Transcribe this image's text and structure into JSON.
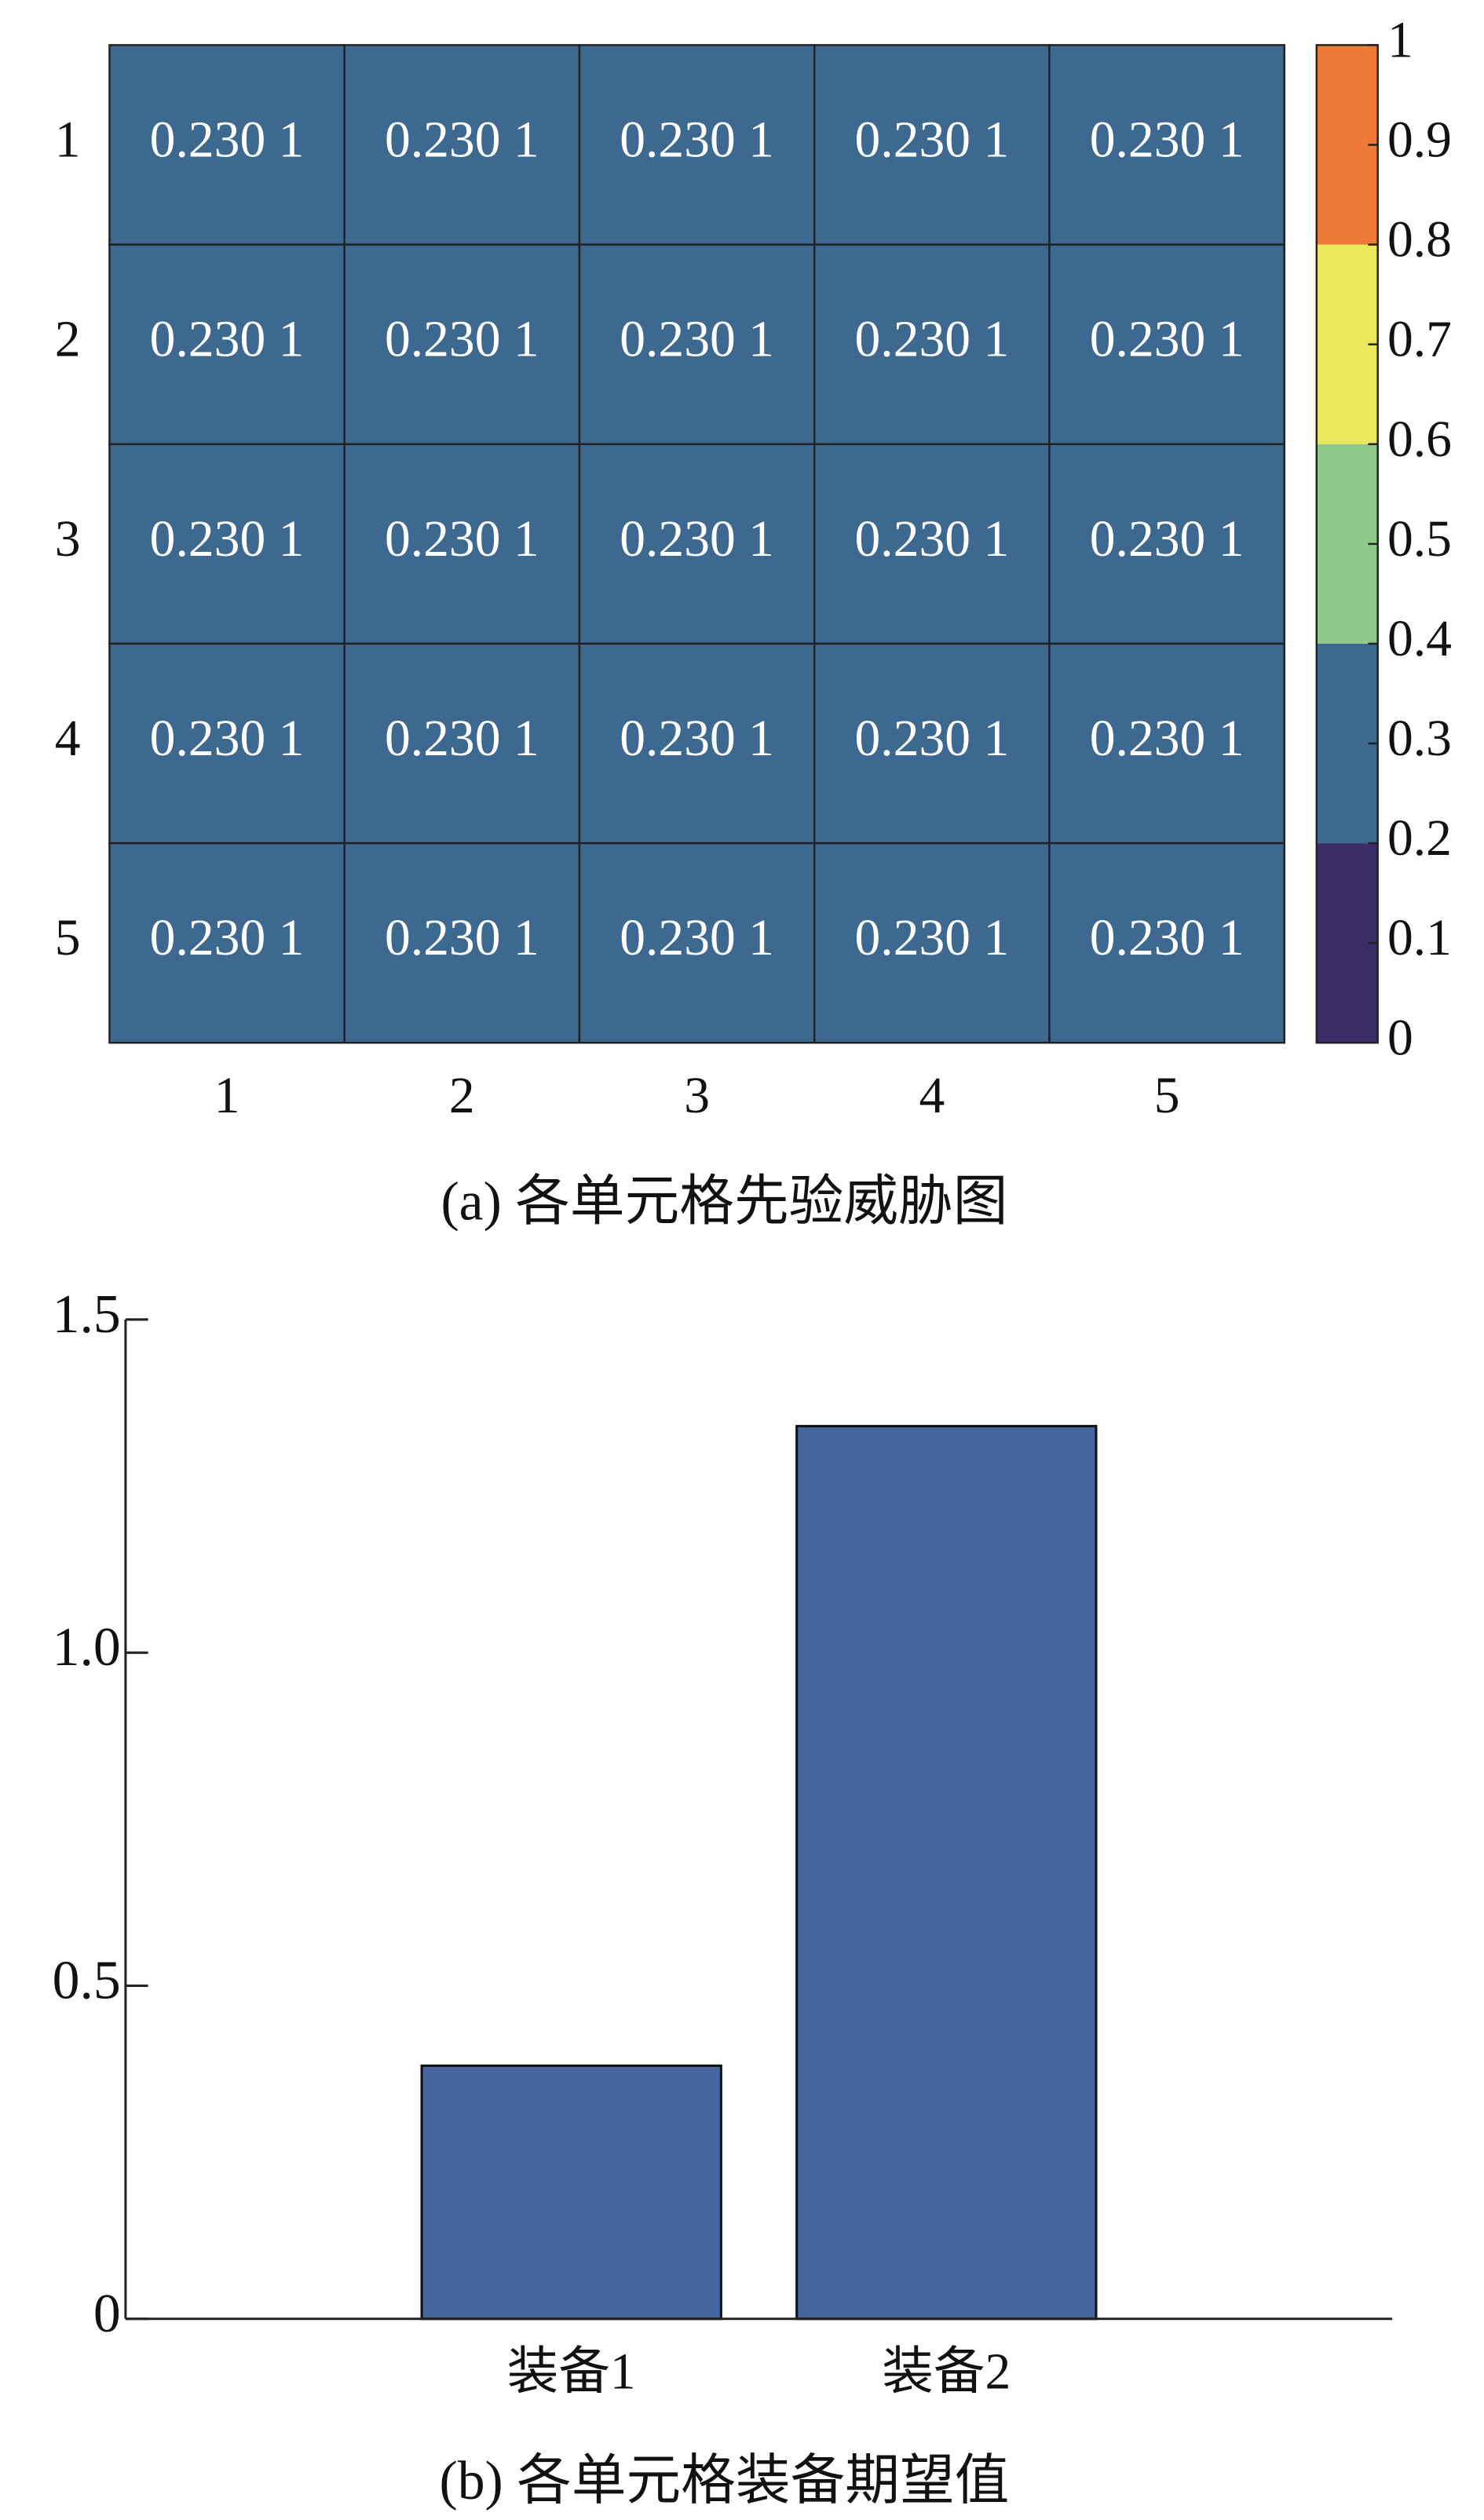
{
  "chart_data": [
    {
      "type": "heatmap",
      "caption": "(a) 各单元格先验威胁图",
      "x_categories": [
        "1",
        "2",
        "3",
        "4",
        "5"
      ],
      "y_categories": [
        "1",
        "2",
        "3",
        "4",
        "5"
      ],
      "values": [
        [
          0.2301,
          0.2301,
          0.2301,
          0.2301,
          0.2301
        ],
        [
          0.2301,
          0.2301,
          0.2301,
          0.2301,
          0.2301
        ],
        [
          0.2301,
          0.2301,
          0.2301,
          0.2301,
          0.2301
        ],
        [
          0.2301,
          0.2301,
          0.2301,
          0.2301,
          0.2301
        ],
        [
          0.2301,
          0.2301,
          0.2301,
          0.2301,
          0.2301
        ]
      ],
      "value_labels": [
        [
          "0.230 1",
          "0.230 1",
          "0.230 1",
          "0.230 1",
          "0.230 1"
        ],
        [
          "0.230 1",
          "0.230 1",
          "0.230 1",
          "0.230 1",
          "0.230 1"
        ],
        [
          "0.230 1",
          "0.230 1",
          "0.230 1",
          "0.230 1",
          "0.230 1"
        ],
        [
          "0.230 1",
          "0.230 1",
          "0.230 1",
          "0.230 1",
          "0.230 1"
        ],
        [
          "0.230 1",
          "0.230 1",
          "0.230 1",
          "0.230 1",
          "0.230 1"
        ]
      ],
      "clim": [
        0,
        1
      ],
      "cticks": [
        0,
        0.1,
        0.2,
        0.3,
        0.4,
        0.5,
        0.6,
        0.7,
        0.8,
        0.9,
        1
      ],
      "color_bins": [
        0,
        0.2,
        0.4,
        0.6,
        0.8,
        1
      ],
      "colors": [
        "#3a2d67",
        "#3d6890",
        "#8fc98a",
        "#ece75c",
        "#ed7a36"
      ]
    },
    {
      "type": "bar",
      "caption": "(b) 各单元格装备期望值",
      "categories": [
        "装备1",
        "装备2"
      ],
      "values": [
        0.38,
        1.34
      ],
      "color": "#4566a0",
      "ylim": [
        0,
        1.5
      ],
      "yticks": [
        0,
        0.5,
        {
          "value": 1,
          "label": "1.0"
        },
        1.5
      ]
    }
  ]
}
